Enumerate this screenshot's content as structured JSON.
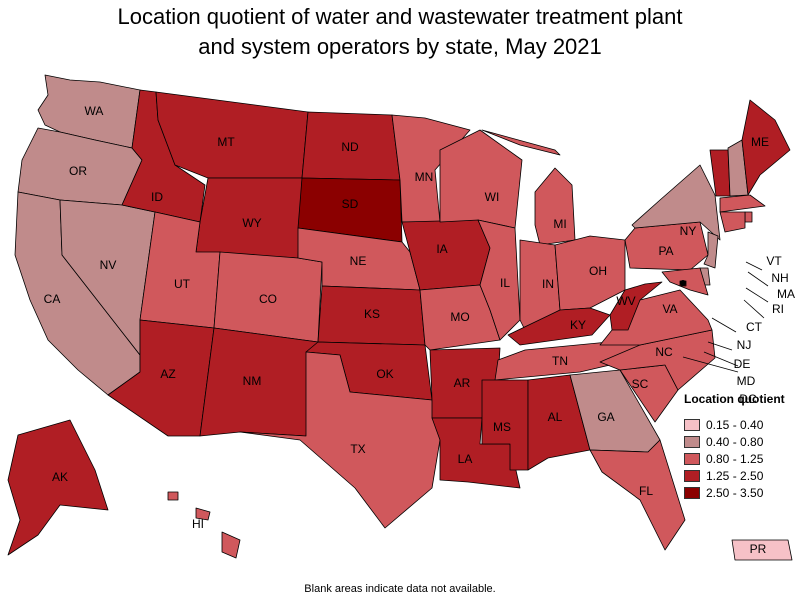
{
  "title_line1": "Location quotient of water and wastewater treatment plant",
  "title_line2": "and system operators by state, May 2021",
  "legend": {
    "title": "Location quotient",
    "items": [
      {
        "label": "0.15 - 0.40",
        "color": "#f6c1c7"
      },
      {
        "label": "0.40 - 0.80",
        "color": "#c08b8b"
      },
      {
        "label": "0.80 - 1.25",
        "color": "#d0585c"
      },
      {
        "label": "1.25 - 2.50",
        "color": "#b01e24"
      },
      {
        "label": "2.50 - 3.50",
        "color": "#8b0000"
      }
    ]
  },
  "footnote": "Blank areas indicate data not available.",
  "states": [
    {
      "abbr": "WA",
      "bin": 1
    },
    {
      "abbr": "OR",
      "bin": 1
    },
    {
      "abbr": "CA",
      "bin": 1
    },
    {
      "abbr": "NV",
      "bin": 1
    },
    {
      "abbr": "ID",
      "bin": 3
    },
    {
      "abbr": "MT",
      "bin": 3
    },
    {
      "abbr": "WY",
      "bin": 3
    },
    {
      "abbr": "UT",
      "bin": 2
    },
    {
      "abbr": "AZ",
      "bin": 3
    },
    {
      "abbr": "CO",
      "bin": 2
    },
    {
      "abbr": "NM",
      "bin": 3
    },
    {
      "abbr": "ND",
      "bin": 3
    },
    {
      "abbr": "SD",
      "bin": 4
    },
    {
      "abbr": "NE",
      "bin": 2
    },
    {
      "abbr": "KS",
      "bin": 3
    },
    {
      "abbr": "OK",
      "bin": 3
    },
    {
      "abbr": "TX",
      "bin": 2
    },
    {
      "abbr": "MN",
      "bin": 2
    },
    {
      "abbr": "IA",
      "bin": 3
    },
    {
      "abbr": "MO",
      "bin": 2
    },
    {
      "abbr": "AR",
      "bin": 3
    },
    {
      "abbr": "LA",
      "bin": 3
    },
    {
      "abbr": "WI",
      "bin": 2
    },
    {
      "abbr": "IL",
      "bin": 2
    },
    {
      "abbr": "MI",
      "bin": 2
    },
    {
      "abbr": "IN",
      "bin": 2
    },
    {
      "abbr": "OH",
      "bin": 2
    },
    {
      "abbr": "KY",
      "bin": 3
    },
    {
      "abbr": "TN",
      "bin": 2
    },
    {
      "abbr": "MS",
      "bin": 3
    },
    {
      "abbr": "AL",
      "bin": 3
    },
    {
      "abbr": "GA",
      "bin": 1
    },
    {
      "abbr": "FL",
      "bin": 2
    },
    {
      "abbr": "SC",
      "bin": 2
    },
    {
      "abbr": "NC",
      "bin": 2
    },
    {
      "abbr": "VA",
      "bin": 2
    },
    {
      "abbr": "WV",
      "bin": 3
    },
    {
      "abbr": "PA",
      "bin": 2
    },
    {
      "abbr": "NY",
      "bin": 1
    },
    {
      "abbr": "VT",
      "bin": 3
    },
    {
      "abbr": "NH",
      "bin": 1
    },
    {
      "abbr": "ME",
      "bin": 3
    },
    {
      "abbr": "MA",
      "bin": 2
    },
    {
      "abbr": "RI",
      "bin": 2
    },
    {
      "abbr": "CT",
      "bin": 2
    },
    {
      "abbr": "NJ",
      "bin": 1
    },
    {
      "abbr": "DE",
      "bin": 1
    },
    {
      "abbr": "MD",
      "bin": 2
    },
    {
      "abbr": "DC",
      "bin": 4
    },
    {
      "abbr": "AK",
      "bin": 3
    },
    {
      "abbr": "HI",
      "bin": 2
    },
    {
      "abbr": "PR",
      "bin": 0
    }
  ]
}
